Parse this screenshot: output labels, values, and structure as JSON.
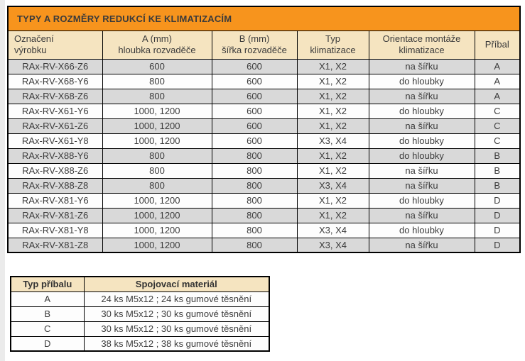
{
  "colors": {
    "title_bg": "#f7941d",
    "header_bg": "#f5e4c0",
    "row_shaded_bg": "#d9d9d9",
    "row_plain_bg": "#fdfdfd",
    "border": "#000000",
    "text": "#3b3b3b"
  },
  "main_table": {
    "title": "TYPY A ROZMĚRY REDUKCÍ KE KLIMATIZACÍM",
    "columns": [
      {
        "label_line1": "Označení",
        "label_line2": "výrobku"
      },
      {
        "label_line1": "A (mm)",
        "label_line2": "hloubka rozvaděče"
      },
      {
        "label_line1": "B (mm)",
        "label_line2": "šířka rozvaděče"
      },
      {
        "label_line1": "Typ",
        "label_line2": "klimatizace"
      },
      {
        "label_line1": "Orientace montáže",
        "label_line2": "klimatizace"
      },
      {
        "label_line1": "Příbal",
        "label_line2": ""
      }
    ],
    "rows": [
      [
        "RAx-RV-X66-Z6",
        "600",
        "600",
        "X1, X2",
        "na šířku",
        "A"
      ],
      [
        "RAx-RV-X68-Y6",
        "800",
        "600",
        "X1, X2",
        "do hloubky",
        "A"
      ],
      [
        "RAx-RV-X68-Z6",
        "800",
        "600",
        "X1, X2",
        "na šířku",
        "A"
      ],
      [
        "RAx-RV-X61-Y6",
        "1000, 1200",
        "600",
        "X1, X2",
        "do hloubky",
        "C"
      ],
      [
        "RAx-RV-X61-Z6",
        "1000, 1200",
        "600",
        "X1, X2",
        "na šířku",
        "C"
      ],
      [
        "RAx-RV-X61-Y8",
        "1000, 1200",
        "600",
        "X3, X4",
        "do hloubky",
        "C"
      ],
      [
        "RAx-RV-X88-Y6",
        "800",
        "800",
        "X1, X2",
        "do hloubky",
        "B"
      ],
      [
        "RAx-RV-X88-Z6",
        "800",
        "800",
        "X1, X2",
        "na šířku",
        "B"
      ],
      [
        "RAx-RV-X88-Z8",
        "800",
        "800",
        "X3, X4",
        "na šířku",
        "B"
      ],
      [
        "RAx-RV-X81-Y6",
        "1000, 1200",
        "800",
        "X1, X2",
        "do hloubky",
        "D"
      ],
      [
        "RAx-RV-X81-Z6",
        "1000, 1200",
        "800",
        "X1, X2",
        "na šířku",
        "D"
      ],
      [
        "RAx-RV-X81-Y8",
        "1000, 1200",
        "800",
        "X3, X4",
        "do hloubky",
        "D"
      ],
      [
        "RAx-RV-X81-Z8",
        "1000, 1200",
        "800",
        "X3, X4",
        "na šířku",
        "D"
      ]
    ]
  },
  "accessory_table": {
    "headers": [
      "Typ příbalu",
      "Spojovací materiál"
    ],
    "rows": [
      [
        "A",
        "24 ks M5x12 ; 24 ks gumové těsnění"
      ],
      [
        "B",
        "30 ks M5x12 ; 30 ks gumové těsnění"
      ],
      [
        "C",
        "30 ks M5x12 ; 30 ks gumové těsnění"
      ],
      [
        "D",
        "38 ks M5x12 ; 38 ks gumové těsnění"
      ]
    ]
  }
}
